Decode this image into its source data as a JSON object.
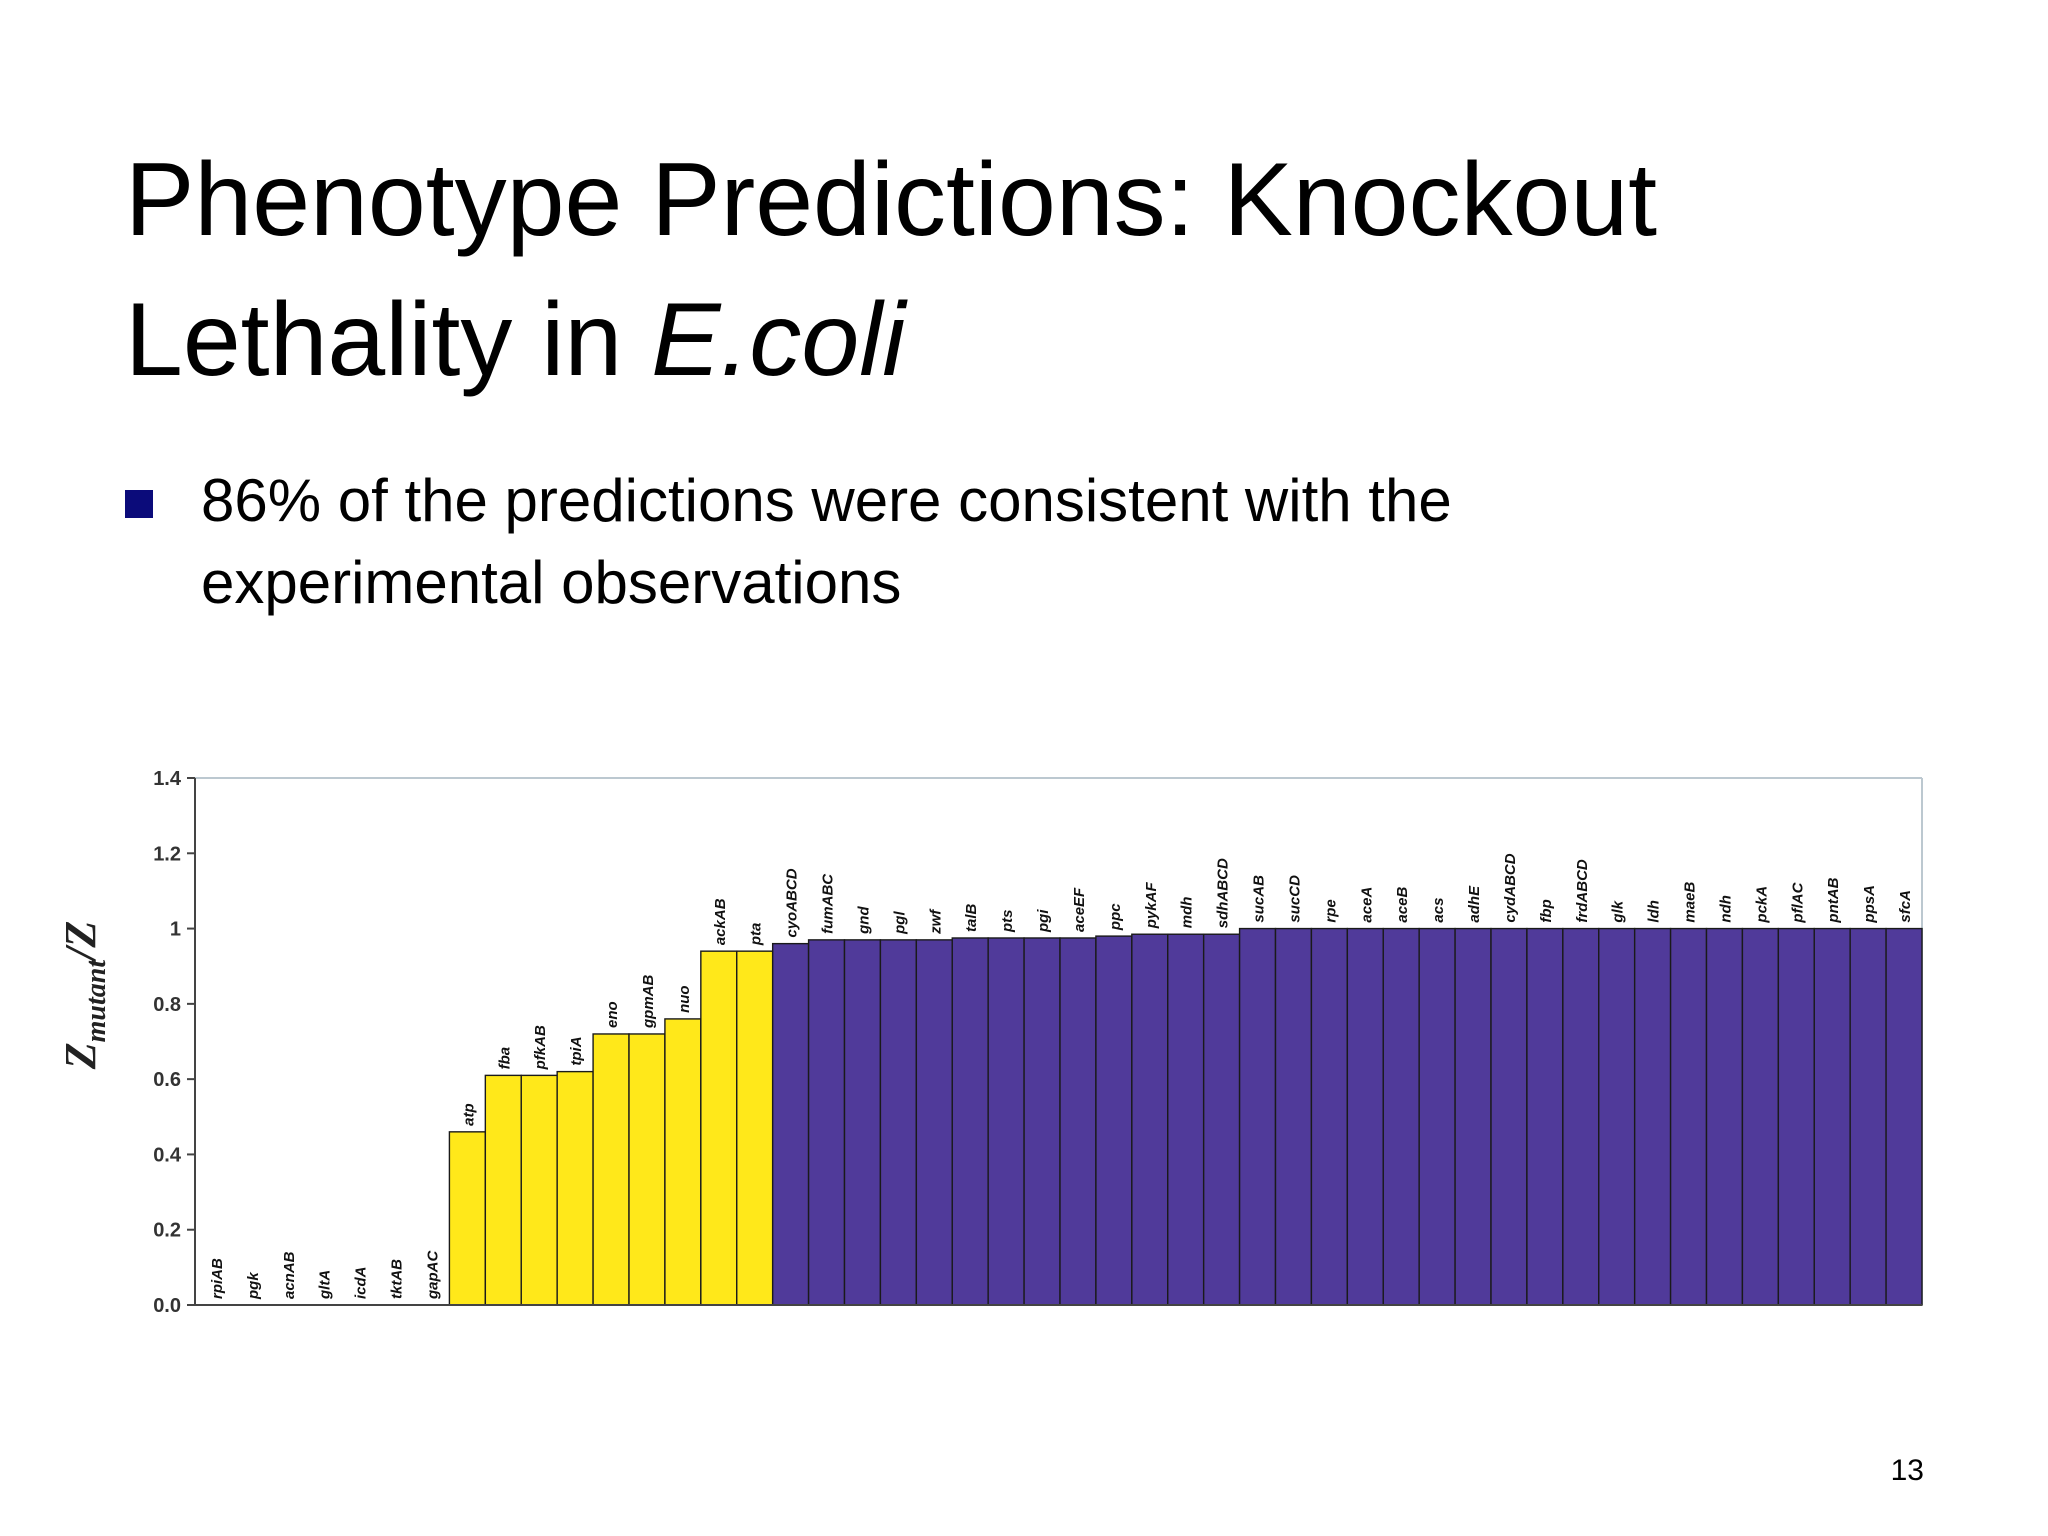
{
  "slide": {
    "title_line1": "Phenotype Predictions: Knockout",
    "title_line2_plain": "Lethality in ",
    "title_line2_italic": "E.coli",
    "bullet": "86% of the predictions were consistent with the experimental observations",
    "page_number": "13"
  },
  "colors": {
    "bullet": "#0b0b7a",
    "yellow_bars": "#ffe81a",
    "purple_bars": "#503a9a",
    "axis": "#444444"
  },
  "chart_data": {
    "type": "bar",
    "ylabel_main": "Z",
    "ylabel_sub": "mutant",
    "ylabel_tail": "/Z",
    "ylim": [
      0,
      1.4
    ],
    "yticks": [
      "0.0",
      "0.2",
      "0.4",
      "0.6",
      "0.8",
      "1",
      "1.2",
      "1.4"
    ],
    "categories": [
      "rpiAB",
      "pgk",
      "acnAB",
      "gltA",
      "icdA",
      "tktAB",
      "gapAC",
      "atp",
      "fba",
      "pfkAB",
      "tpiA",
      "eno",
      "gpmAB",
      "nuo",
      "ackAB",
      "pta",
      "cyoABCD",
      "fumABC",
      "gnd",
      "pgl",
      "zwf",
      "talB",
      "pts",
      "pgi",
      "aceEF",
      "ppc",
      "pykAF",
      "mdh",
      "sdhABCD",
      "sucAB",
      "sucCD",
      "rpe",
      "aceA",
      "aceB",
      "acs",
      "adhE",
      "cydABCD",
      "fbp",
      "frdABCD",
      "glk",
      "ldh",
      "maeB",
      "ndh",
      "pckA",
      "pflAC",
      "pntAB",
      "ppsA",
      "sfcA"
    ],
    "values": [
      0,
      0,
      0,
      0,
      0,
      0,
      0,
      0.46,
      0.61,
      0.61,
      0.62,
      0.72,
      0.72,
      0.76,
      0.94,
      0.94,
      0.96,
      0.97,
      0.97,
      0.97,
      0.97,
      0.975,
      0.975,
      0.975,
      0.975,
      0.98,
      0.985,
      0.985,
      0.985,
      1,
      1,
      1,
      1,
      1,
      1,
      1,
      1,
      1,
      1,
      1,
      1,
      1,
      1,
      1,
      1,
      1,
      1,
      1
    ],
    "bar_groups": [
      "yellow",
      "yellow",
      "yellow",
      "yellow",
      "yellow",
      "yellow",
      "yellow",
      "yellow",
      "yellow",
      "yellow",
      "yellow",
      "yellow",
      "yellow",
      "yellow",
      "yellow",
      "yellow",
      "purple",
      "purple",
      "purple",
      "purple",
      "purple",
      "purple",
      "purple",
      "purple",
      "purple",
      "purple",
      "purple",
      "purple",
      "purple",
      "purple",
      "purple",
      "purple",
      "purple",
      "purple",
      "purple",
      "purple",
      "purple",
      "purple",
      "purple",
      "purple",
      "purple",
      "purple",
      "purple",
      "purple",
      "purple",
      "purple",
      "purple",
      "purple"
    ]
  }
}
